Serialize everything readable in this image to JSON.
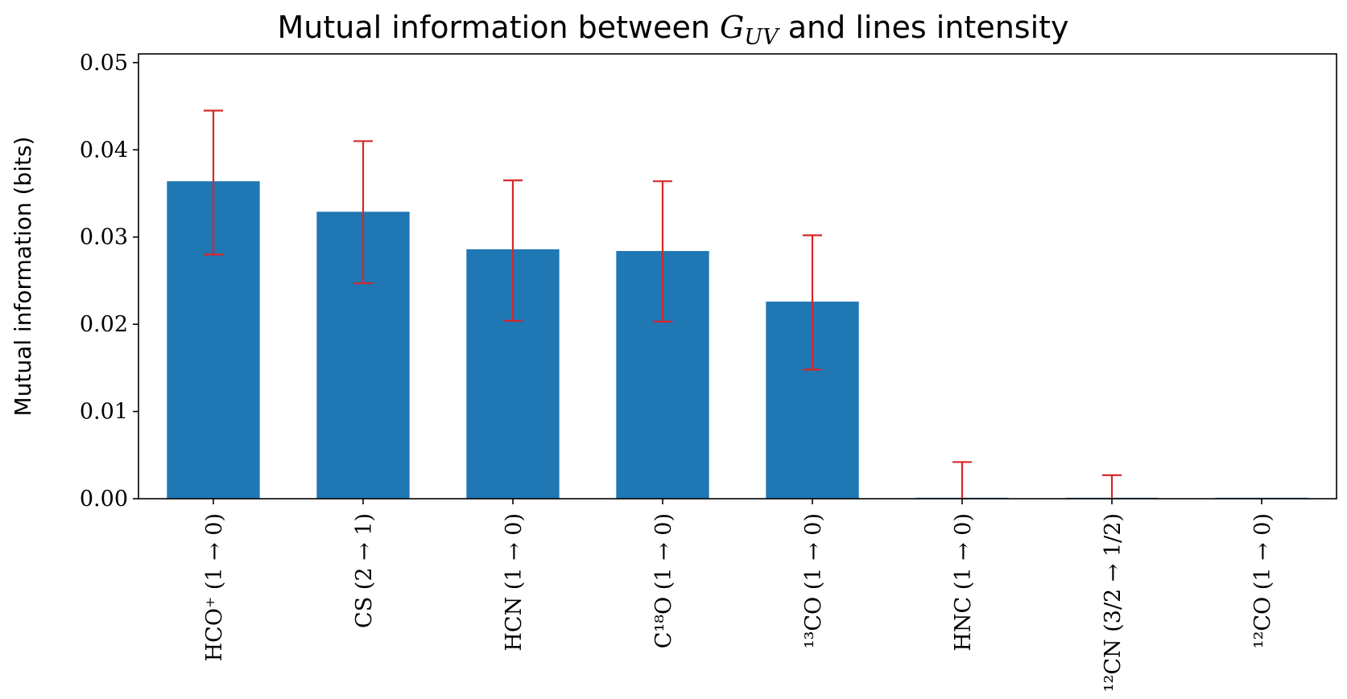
{
  "chart_data": {
    "type": "bar",
    "title": "Mutual information between G_UV and lines intensity",
    "title_parts": {
      "before": "Mutual information between ",
      "symbol": "G",
      "subscript": "UV",
      "after": " and lines intensity"
    },
    "xlabel": "",
    "ylabel": "Mutual information (bits)",
    "ylim": [
      0,
      0.051
    ],
    "yticks": [
      "0.00",
      "0.01",
      "0.02",
      "0.03",
      "0.04",
      "0.05"
    ],
    "grid": false,
    "categories": [
      "HCO⁺ (1 → 0)",
      "CS (2 → 1)",
      "HCN (1 → 0)",
      "C¹⁸O (1 → 0)",
      "¹³CO (1 → 0)",
      "HNC (1 → 0)",
      "¹²CN (3/2 → 1/2)",
      "¹²CO (1 → 0)"
    ],
    "values": [
      0.0364,
      0.0329,
      0.0286,
      0.0284,
      0.0226,
      0.0,
      0.0,
      0.0
    ],
    "error_low": [
      0.0084,
      0.0082,
      0.0082,
      0.0081,
      0.0078,
      0.0,
      0.0,
      0.0
    ],
    "error_high": [
      0.0081,
      0.0081,
      0.0079,
      0.008,
      0.0076,
      0.0042,
      0.0027,
      0.0
    ],
    "bar_color": "#1f77b4",
    "error_color": "#d62728"
  }
}
